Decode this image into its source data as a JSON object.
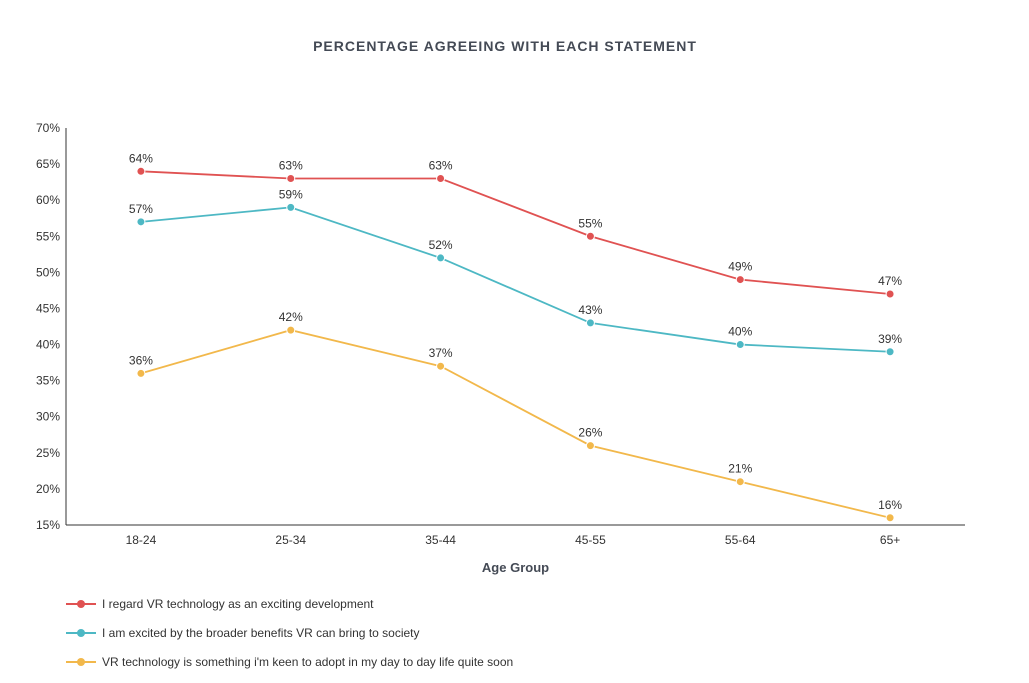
{
  "chart_data": {
    "type": "line",
    "title": "PERCENTAGE AGREEING WITH EACH STATEMENT",
    "xlabel": "Age Group",
    "ylabel": "",
    "categories": [
      "18-24",
      "25-34",
      "35-44",
      "45-55",
      "55-64",
      "65+"
    ],
    "ylim": [
      15,
      70
    ],
    "yticks": [
      15,
      20,
      25,
      30,
      35,
      40,
      45,
      50,
      55,
      60,
      65,
      70
    ],
    "ytick_suffix": "%",
    "grid": false,
    "legend_position": "bottom-left",
    "series": [
      {
        "name": "I regard VR technology as an exciting development",
        "color": "#e05252",
        "values": [
          64,
          63,
          63,
          55,
          49,
          47
        ]
      },
      {
        "name": "I am excited by the broader benefits VR can bring to society",
        "color": "#4db8c4",
        "values": [
          57,
          59,
          52,
          43,
          40,
          39
        ]
      },
      {
        "name": "VR technology is something i'm keen to adopt in my day to day life quite soon",
        "color": "#f2b84b",
        "values": [
          36,
          42,
          37,
          26,
          21,
          16
        ]
      }
    ]
  }
}
